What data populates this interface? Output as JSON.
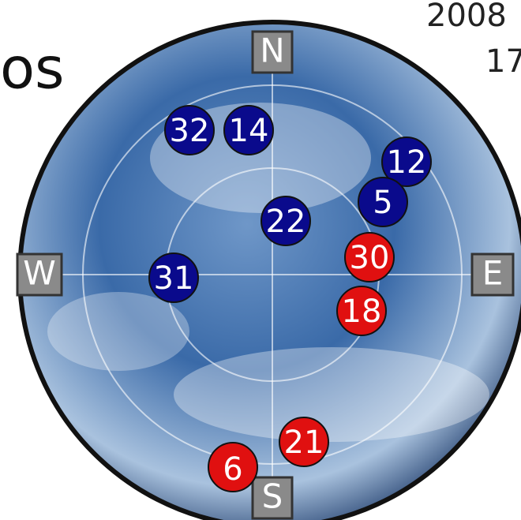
{
  "header": {
    "title_fragment": "os",
    "date_fragment": "2008",
    "time_fragment": "17"
  },
  "compass": {
    "north": "N",
    "south": "S",
    "west": "W",
    "east": "E"
  },
  "satellites": [
    {
      "label": "32",
      "color": "#0a0a8c"
    },
    {
      "label": "14",
      "color": "#0a0a8c"
    },
    {
      "label": "12",
      "color": "#0a0a8c"
    },
    {
      "label": "5",
      "color": "#0a0a8c"
    },
    {
      "label": "22",
      "color": "#0a0a8c"
    },
    {
      "label": "30",
      "color": "#e01010"
    },
    {
      "label": "31",
      "color": "#0a0a8c"
    },
    {
      "label": "18",
      "color": "#e01010"
    },
    {
      "label": "21",
      "color": "#e01010"
    },
    {
      "label": "6",
      "color": "#e01010"
    }
  ]
}
